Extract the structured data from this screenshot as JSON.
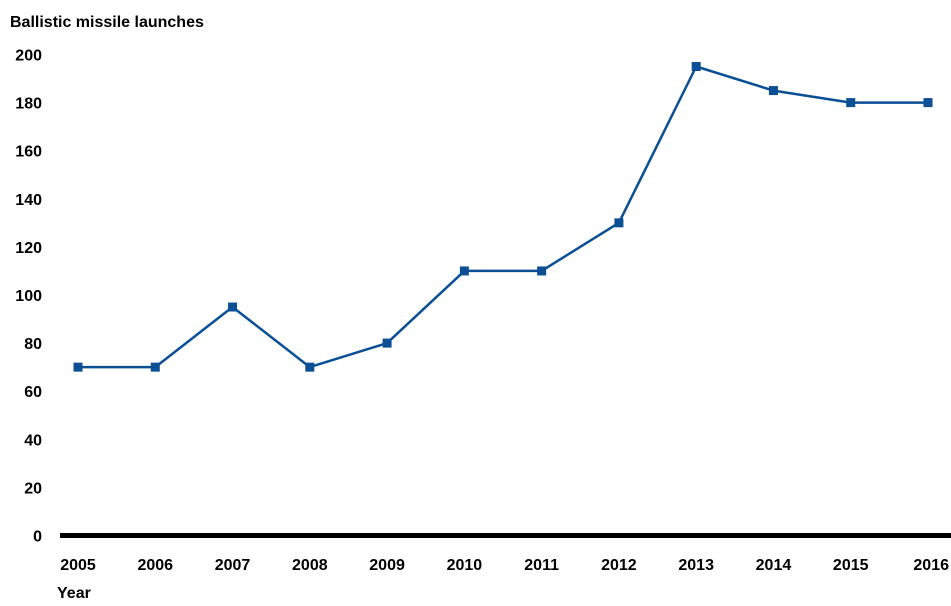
{
  "chart_data": {
    "type": "line",
    "ylabel": "Ballistic missile launches",
    "xlabel": "Year",
    "x": [
      "2005",
      "2006",
      "2007",
      "2008",
      "2009",
      "2010",
      "2011",
      "2012",
      "2013",
      "2014",
      "2015",
      "2016"
    ],
    "series": [
      {
        "values": [
          70,
          70,
          95,
          70,
          80,
          110,
          110,
          130,
          195,
          185,
          180,
          180
        ],
        "color": "#0b4f95",
        "marker": "square"
      }
    ],
    "yticks": [
      "0",
      "20",
      "40",
      "60",
      "80",
      "100",
      "120",
      "140",
      "160",
      "180",
      "200"
    ],
    "ylim": [
      0,
      200
    ],
    "grid": false,
    "legend": "none"
  }
}
